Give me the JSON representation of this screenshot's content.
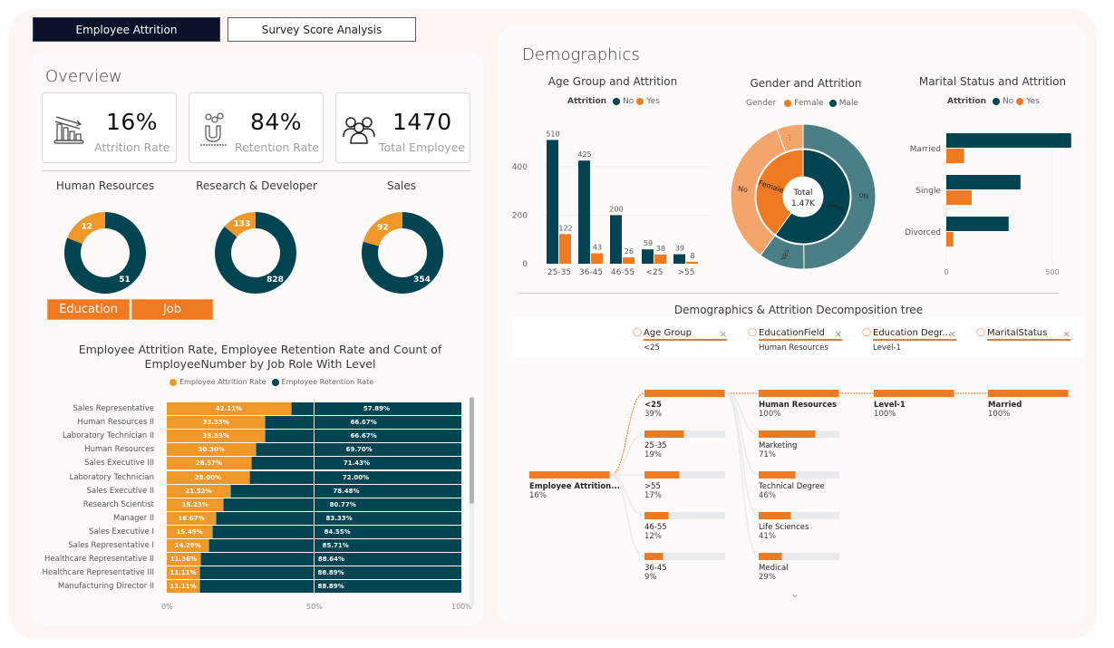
{
  "tabs": [
    {
      "label": "Employee Attrition",
      "active": true
    },
    {
      "label": "Survey Score Analysis",
      "active": false
    }
  ],
  "overview": {
    "title": "Overview",
    "kpis": [
      {
        "value": "16%",
        "label": "Attrition Rate",
        "icon": "declining-bar-chart-icon"
      },
      {
        "value": "84%",
        "label": "Retention Rate",
        "icon": "magnet-people-icon"
      },
      {
        "value": "1470",
        "label": "Total Employee",
        "icon": "people-group-icon"
      }
    ],
    "departments": [
      {
        "name": "Human Resources",
        "yes": 12,
        "no": 51
      },
      {
        "name": "Research & Developer",
        "yes": 133,
        "no": 828
      },
      {
        "name": "Sales",
        "yes": 92,
        "no": 354
      }
    ],
    "buttons": {
      "education": "Education",
      "job": "Job"
    }
  },
  "colors": {
    "attrition_orange": "#f0992a",
    "retention_teal": "#024451",
    "accent_orange": "#f07a22",
    "male_light": "#4b7f86",
    "female_light": "#f3a56b",
    "tab_active_bg": "#0a1128"
  },
  "chart_data": [
    {
      "type": "bar",
      "orientation": "horizontal-stacked-100",
      "title": "Employee Attrition Rate, Employee Retention Rate and Count of EmployeeNumber by Job Role With Level",
      "legend": [
        "Employee Attrition Rate",
        "Employee Retention  Rate"
      ],
      "legend_position": "top-center",
      "categories": [
        "Sales Representative",
        "Human Resources II",
        "Laboratory Technician II",
        "Human Resources",
        "Sales Executive III",
        "Laboratory Technician",
        "Sales Executive II",
        "Research Scientist",
        "Manager II",
        "Sales Executive I",
        "Sales Representative I",
        "Healthcare Representative II",
        "Healthcare Representative III",
        "Manufacturing Director II"
      ],
      "series": [
        {
          "name": "Employee Attrition Rate",
          "values": [
            42.11,
            33.33,
            33.33,
            30.3,
            28.57,
            28.0,
            21.52,
            19.23,
            16.67,
            15.45,
            14.29,
            11.36,
            11.11,
            11.11
          ],
          "labels": [
            "42.11%",
            "33.33%",
            "33.33%",
            "30.30%",
            "28.57%",
            "28.00%",
            "21.52%",
            "19.23%",
            "16.67%",
            "15.45%",
            "14.29%",
            "11.36%",
            "11.11%",
            "11.11%"
          ]
        },
        {
          "name": "Employee Retention  Rate",
          "values": [
            57.89,
            66.67,
            66.67,
            69.7,
            71.43,
            72.0,
            78.48,
            80.77,
            83.33,
            84.55,
            85.71,
            88.64,
            88.89,
            88.89
          ],
          "labels": [
            "57.89%",
            "66.67%",
            "66.67%",
            "69.70%",
            "71.43%",
            "72.00%",
            "78.48%",
            "80.77%",
            "83.33%",
            "84.55%",
            "85.71%",
            "88.64%",
            "88.89%",
            "88.89%"
          ]
        }
      ],
      "xticks": [
        "0%",
        "50%",
        "100%"
      ],
      "xlim": [
        0,
        100
      ]
    },
    {
      "type": "bar",
      "title": "Age Group and Attrition",
      "legend_title": "Attrition",
      "legend": [
        "No",
        "Yes"
      ],
      "legend_position": "top-center",
      "categories": [
        "25-35",
        "36-45",
        "46-55",
        "<25",
        ">55"
      ],
      "series": [
        {
          "name": "No",
          "values": [
            510,
            425,
            200,
            59,
            39
          ]
        },
        {
          "name": "Yes",
          "values": [
            122,
            43,
            26,
            38,
            8
          ]
        }
      ],
      "yticks": [
        "0",
        "200",
        "400"
      ],
      "ylim": [
        0,
        560
      ]
    },
    {
      "type": "pie",
      "title": "Gender and Attrition",
      "legend_title": "Gender",
      "legend": [
        "Female",
        "Male"
      ],
      "center_label": "Total",
      "center_value": "1.47K",
      "inner": [
        {
          "name": "Female",
          "value": 588
        },
        {
          "name": "Male",
          "value": 882
        }
      ],
      "outer": [
        {
          "parent": "Female",
          "name": "No",
          "value": 501
        },
        {
          "parent": "Female",
          "name": "...",
          "value": 87
        },
        {
          "parent": "Male",
          "name": "No",
          "value": 732
        },
        {
          "parent": "Male",
          "name": "Yes",
          "value": 150
        }
      ]
    },
    {
      "type": "bar",
      "orientation": "horizontal",
      "title": "Marital Status and Attrition",
      "legend_title": "Attrition",
      "legend": [
        "No",
        "Yes"
      ],
      "legend_position": "top-center",
      "categories": [
        "Married",
        "Single",
        "Divorced"
      ],
      "series": [
        {
          "name": "No",
          "values": [
            589,
            350,
            294
          ]
        },
        {
          "name": "Yes",
          "values": [
            84,
            120,
            33
          ]
        }
      ],
      "xticks": [
        "0",
        "500"
      ],
      "xlim": [
        0,
        620
      ]
    }
  ],
  "demographics": {
    "title": "Demographics"
  },
  "decomposition": {
    "title": "Demographics & Attrition Decomposition tree",
    "filters": [
      {
        "name": "Age Group",
        "value": "<25"
      },
      {
        "name": "EducationField",
        "value": "Human Resources"
      },
      {
        "name": "Education Degr...",
        "value": "Level-1"
      },
      {
        "name": "MaritalStatus",
        "value": ""
      }
    ],
    "root": {
      "label": "Employee Attrition...",
      "pct": "16%",
      "fill": 1.0
    },
    "age_nodes": [
      {
        "label": "<25",
        "pct": "39%",
        "fill": 1.0,
        "selected": true
      },
      {
        "label": "25-35",
        "pct": "19%",
        "fill": 0.49
      },
      {
        "label": ">55",
        "pct": "17%",
        "fill": 0.44
      },
      {
        "label": "46-55",
        "pct": "12%",
        "fill": 0.3
      },
      {
        "label": "36-45",
        "pct": "9%",
        "fill": 0.24
      }
    ],
    "edu_nodes": [
      {
        "label": "Human Resources",
        "pct": "100%",
        "fill": 1.0,
        "selected": true
      },
      {
        "label": "Marketing",
        "pct": "71%",
        "fill": 0.71
      },
      {
        "label": "Technical Degree",
        "pct": "46%",
        "fill": 0.46
      },
      {
        "label": "Life Sciences",
        "pct": "41%",
        "fill": 0.41
      },
      {
        "label": "Medical",
        "pct": "29%",
        "fill": 0.29
      }
    ],
    "degree_nodes": [
      {
        "label": "Level-1",
        "pct": "100%",
        "fill": 1.0,
        "selected": true
      }
    ],
    "marital_nodes": [
      {
        "label": "Married",
        "pct": "100%",
        "fill": 1.0,
        "selected": true
      }
    ]
  }
}
